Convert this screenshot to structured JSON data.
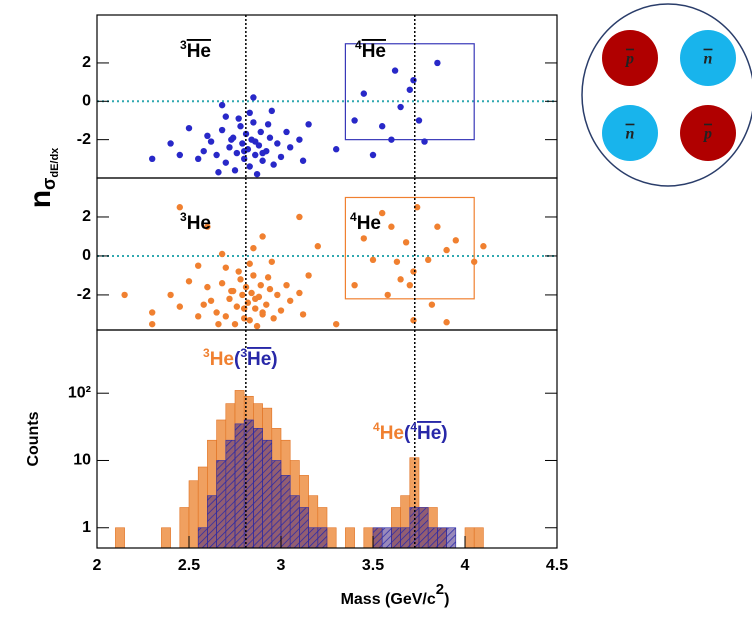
{
  "chart_data": [
    {
      "type": "scatter",
      "color": "#2828c8",
      "ylabel": {
        "main": "n",
        "sub": "σ",
        "subsub": "dE/dx"
      },
      "xlim": [
        2,
        4.5
      ],
      "ylim": [
        -4,
        4.5
      ],
      "yticks": [
        -2,
        0,
        2
      ],
      "hline": 0,
      "vlines": [
        2.809,
        3.727
      ],
      "box": {
        "x": [
          3.35,
          4.05
        ],
        "y": [
          -2,
          3
        ],
        "color": "#3838b8"
      },
      "annotations": [
        {
          "segments": [
            {
              "sup": "3",
              "text": "He",
              "overline": true,
              "color": "#000000"
            }
          ]
        },
        {
          "segments": [
            {
              "sup": "4",
              "text": "He",
              "overline": true,
              "color": "#000000"
            }
          ]
        }
      ],
      "x": [
        2.62,
        2.65,
        2.68,
        2.7,
        2.72,
        2.74,
        2.75,
        2.76,
        2.78,
        2.79,
        2.8,
        2.81,
        2.82,
        2.83,
        2.84,
        2.85,
        2.86,
        2.87,
        2.88,
        2.89,
        2.9,
        2.92,
        2.94,
        2.96,
        2.98,
        3.0,
        2.77,
        2.83,
        2.7,
        2.93,
        2.58,
        2.55,
        2.6,
        3.03,
        3.05,
        2.66,
        2.73,
        2.8,
        2.86,
        2.9,
        2.5,
        2.45,
        3.1,
        3.12,
        2.95,
        2.68,
        2.85,
        3.15,
        2.4,
        2.3,
        3.6,
        3.65,
        3.7,
        3.72,
        3.75,
        3.85,
        3.62,
        3.55,
        3.78,
        3.5,
        3.4,
        3.3,
        3.45
      ],
      "y": [
        -2.1,
        -2.8,
        -1.5,
        -3.2,
        -2.4,
        -1.9,
        -3.6,
        -2.7,
        -1.3,
        -2.2,
        -3.0,
        -1.7,
        -2.5,
        -3.4,
        -2.0,
        -1.1,
        -2.8,
        -3.8,
        -2.3,
        -1.6,
        -3.1,
        -2.6,
        -1.9,
        -3.3,
        -2.2,
        -2.9,
        -0.9,
        -0.6,
        -0.8,
        -1.2,
        -2.6,
        -3.0,
        -1.8,
        -1.6,
        -2.4,
        -3.7,
        -2.0,
        -2.6,
        -2.1,
        -2.7,
        -1.4,
        -2.8,
        -2.0,
        -3.1,
        -0.5,
        -0.2,
        0.2,
        -1.2,
        -2.2,
        -3.0,
        -2.0,
        -0.3,
        0.6,
        1.1,
        -1.0,
        2.0,
        1.6,
        -1.3,
        -2.1,
        -2.8,
        -1.0,
        -2.5,
        0.4
      ]
    },
    {
      "type": "scatter",
      "color": "#f08030",
      "xlim": [
        2,
        4.5
      ],
      "ylim": [
        -3.8,
        4
      ],
      "yticks": [
        -2,
        0,
        2
      ],
      "hline": 0,
      "vlines": [
        2.809,
        3.727
      ],
      "box": {
        "x": [
          3.35,
          4.05
        ],
        "y": [
          -2.2,
          3
        ],
        "color": "#f08030"
      },
      "annotations": [
        {
          "segments": [
            {
              "sup": "3",
              "text": "He",
              "color": "#000000"
            }
          ]
        },
        {
          "segments": [
            {
              "sup": "4",
              "text": "He",
              "color": "#000000"
            }
          ]
        }
      ],
      "x": [
        2.62,
        2.65,
        2.68,
        2.7,
        2.72,
        2.74,
        2.75,
        2.76,
        2.78,
        2.79,
        2.8,
        2.81,
        2.82,
        2.83,
        2.84,
        2.85,
        2.86,
        2.87,
        2.88,
        2.89,
        2.9,
        2.92,
        2.94,
        2.96,
        2.98,
        3.0,
        2.77,
        2.83,
        2.7,
        2.93,
        2.58,
        2.55,
        2.6,
        3.03,
        3.05,
        2.66,
        2.73,
        2.8,
        2.86,
        2.9,
        2.5,
        2.45,
        3.1,
        3.12,
        2.95,
        2.68,
        2.85,
        3.15,
        2.4,
        2.3,
        2.15,
        2.3,
        2.45,
        3.3,
        3.2,
        3.1,
        2.6,
        2.9,
        3.4,
        2.55,
        3.6,
        3.63,
        3.65,
        3.68,
        3.7,
        3.72,
        3.74,
        3.8,
        3.85,
        3.9,
        3.95,
        4.05,
        4.1,
        3.58,
        3.82,
        3.5,
        3.45,
        3.9,
        3.55,
        3.72
      ],
      "y": [
        -2.3,
        -2.9,
        -1.4,
        -3.1,
        -2.2,
        -1.8,
        -3.5,
        -2.6,
        -1.2,
        -2.0,
        -3.2,
        -1.6,
        -2.4,
        -3.3,
        -1.9,
        -1.0,
        -2.7,
        -3.6,
        -2.1,
        -1.5,
        -3.0,
        -2.5,
        -1.7,
        -3.2,
        -2.0,
        -2.8,
        -0.8,
        -0.4,
        -0.6,
        -1.1,
        -2.5,
        -3.1,
        -1.6,
        -1.5,
        -2.3,
        -3.5,
        -1.8,
        -2.7,
        -2.2,
        -2.9,
        -1.3,
        -2.6,
        -1.9,
        -3.0,
        -0.3,
        0.1,
        0.4,
        -1.0,
        -2.0,
        -2.9,
        -2.0,
        -3.5,
        2.5,
        -3.5,
        0.5,
        2.0,
        1.5,
        1.0,
        -1.5,
        -0.5,
        1.5,
        -0.3,
        -1.2,
        0.7,
        -1.5,
        -0.8,
        2.5,
        -0.2,
        1.5,
        0.3,
        0.8,
        -0.3,
        0.5,
        -2.0,
        -2.5,
        -0.2,
        0.9,
        -3.4,
        2.2,
        -3.3
      ]
    },
    {
      "type": "histogram",
      "log_y": true,
      "xlabel": {
        "text": "Mass (GeV/c",
        "sup": "2",
        "tail": ")"
      },
      "ylabel": "Counts",
      "xlim": [
        2,
        4.5
      ],
      "xticks": [
        2,
        2.5,
        3,
        3.5,
        4,
        4.5
      ],
      "ylim": [
        0.5,
        870
      ],
      "yticks": [
        1,
        10,
        {
          "value": 100,
          "label": "10²"
        }
      ],
      "vlines": [
        2.809,
        3.727
      ],
      "annotations": [
        {
          "segments": [
            {
              "sup": "3",
              "text": "He",
              "color": "#f08030"
            },
            {
              "text": "(",
              "color": "#2828a8"
            },
            {
              "sup": "3",
              "text": "He",
              "overline": true,
              "color": "#2828a8"
            },
            {
              "text": ")",
              "color": "#2828a8"
            }
          ]
        },
        {
          "segments": [
            {
              "sup": "4",
              "text": "He",
              "color": "#f08030"
            },
            {
              "text": "(",
              "color": "#2828a8"
            },
            {
              "sup": "4",
              "text": "He",
              "overline": true,
              "color": "#2828a8"
            },
            {
              "text": ")",
              "color": "#2828a8"
            }
          ]
        }
      ],
      "bins": [
        2,
        2.05,
        2.1,
        2.15,
        2.2,
        2.25,
        2.3,
        2.35,
        2.4,
        2.45,
        2.5,
        2.55,
        2.6,
        2.65,
        2.7,
        2.75,
        2.8,
        2.85,
        2.9,
        2.95,
        3,
        3.05,
        3.1,
        3.15,
        3.2,
        3.25,
        3.3,
        3.35,
        3.4,
        3.45,
        3.5,
        3.55,
        3.6,
        3.65,
        3.7,
        3.75,
        3.8,
        3.85,
        3.9,
        3.95,
        4,
        4.05,
        4.1,
        4.15,
        4.2,
        4.25,
        4.3,
        4.35,
        4.4,
        4.45,
        4.5
      ],
      "series": [
        {
          "color": "#f0a060",
          "values": [
            0,
            0,
            1,
            0,
            0,
            0,
            0,
            1,
            0,
            2,
            5,
            8,
            20,
            40,
            70,
            110,
            90,
            70,
            60,
            30,
            20,
            10,
            6,
            3,
            2,
            1,
            0,
            1,
            0,
            1,
            1,
            0,
            2,
            3,
            11,
            2,
            2,
            1,
            0,
            0,
            1,
            1,
            0,
            0,
            0,
            0,
            0,
            0,
            0,
            0
          ]
        },
        {
          "color": "#2828a8",
          "values": [
            0,
            0,
            0,
            0,
            0,
            0,
            0,
            0,
            0,
            0,
            0,
            1,
            3,
            10,
            20,
            35,
            40,
            30,
            20,
            10,
            6,
            3,
            2,
            1,
            1,
            0,
            0,
            0,
            0,
            0,
            1,
            1,
            1,
            1,
            2,
            2,
            1,
            1,
            1,
            0,
            0,
            0,
            0,
            0,
            0,
            0,
            0,
            0,
            0,
            0
          ]
        }
      ]
    }
  ],
  "diagram": {
    "particles": [
      {
        "symbol": "p",
        "color": "#b00000"
      },
      {
        "symbol": "n",
        "color": "#18b4ec"
      },
      {
        "symbol": "n",
        "color": "#18b4ec"
      },
      {
        "symbol": "p",
        "color": "#b00000"
      }
    ]
  }
}
